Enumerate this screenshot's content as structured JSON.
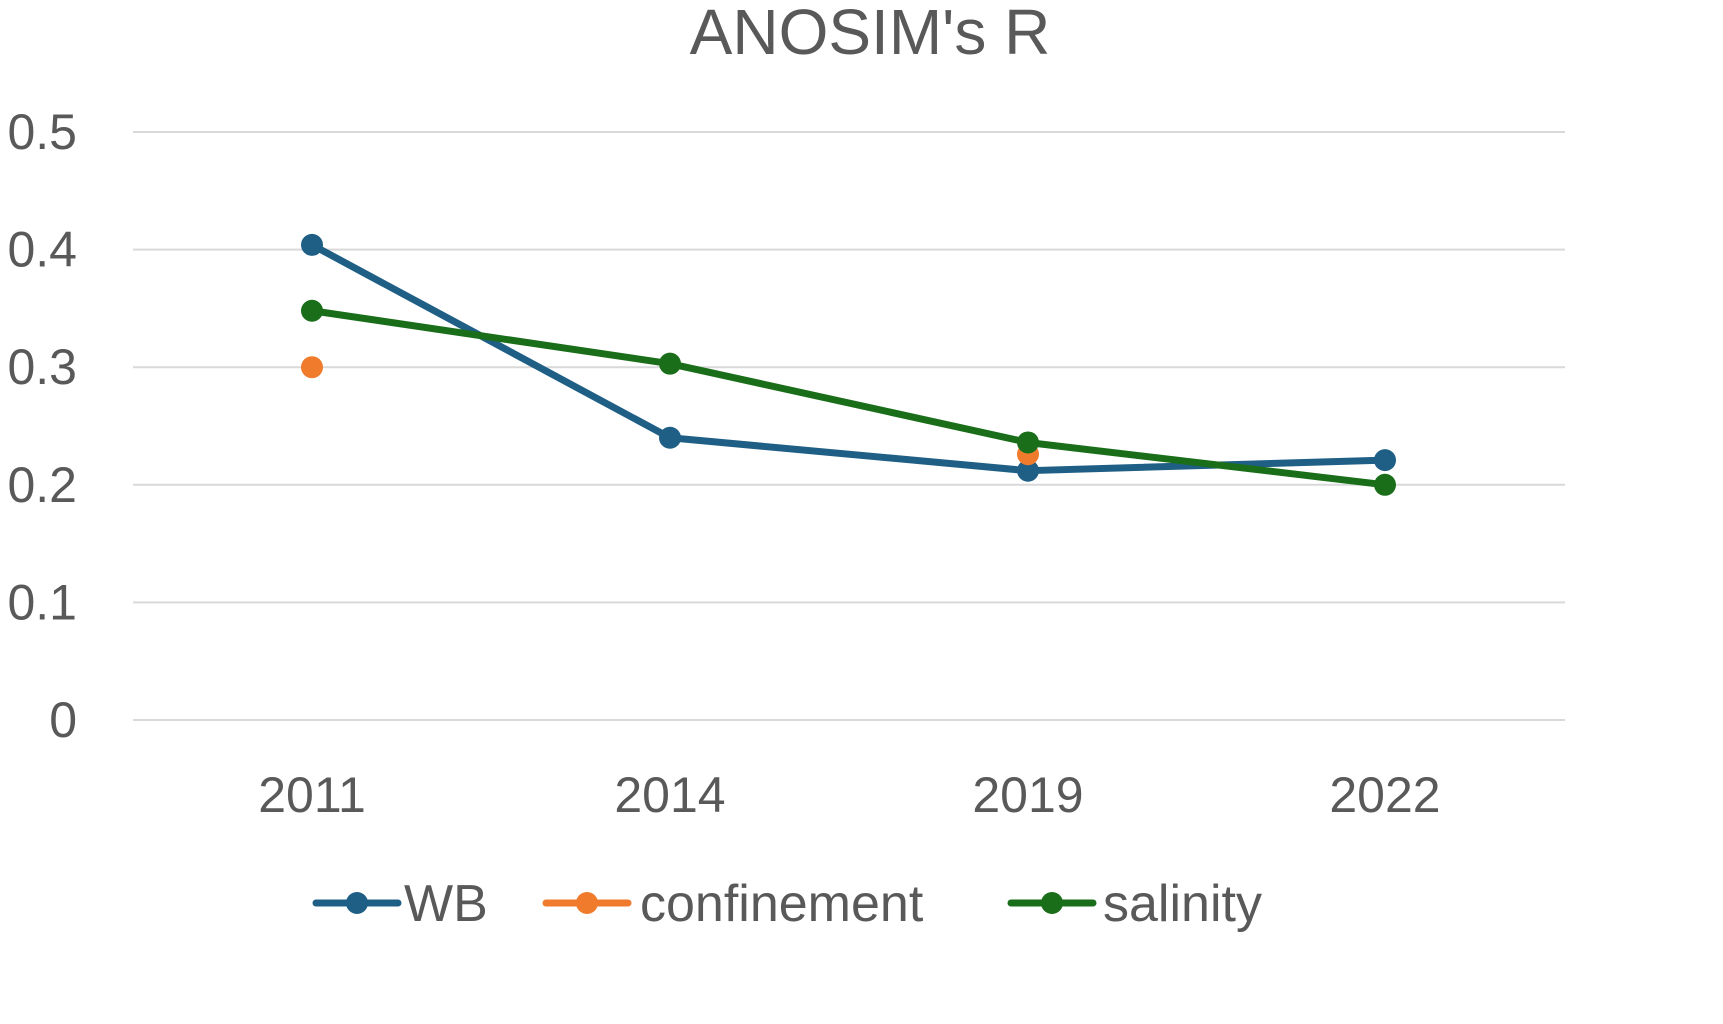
{
  "chart_data": {
    "type": "line",
    "title": "ANOSIM's R",
    "xlabel": "",
    "ylabel": "",
    "categories": [
      "2011",
      "2014",
      "2019",
      "2022"
    ],
    "ylim": [
      0,
      0.5
    ],
    "yticks": [
      0,
      0.1,
      0.2,
      0.3,
      0.4,
      0.5
    ],
    "ytick_labels": [
      "0",
      "0.1",
      "0.2",
      "0.3",
      "0.4",
      "0.5"
    ],
    "grid": true,
    "legend_position": "bottom",
    "series": [
      {
        "name": "WB",
        "color": "#1f5f86",
        "values": [
          0.404,
          0.24,
          0.212,
          0.221
        ]
      },
      {
        "name": "confinement",
        "color": "#f07b2c",
        "values": [
          0.3,
          null,
          0.226,
          null
        ]
      },
      {
        "name": "salinity",
        "color": "#1a6e1a",
        "values": [
          0.348,
          0.303,
          0.236,
          0.2
        ]
      }
    ]
  }
}
